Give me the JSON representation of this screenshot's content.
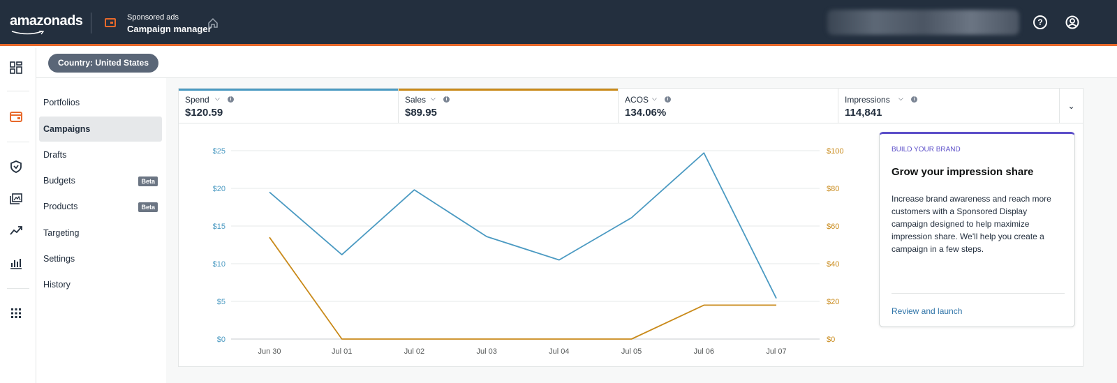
{
  "header": {
    "logo": "amazonads",
    "app_subtitle": "Sponsored ads",
    "app_title": "Campaign manager"
  },
  "country_filter": {
    "label": "Country: United States"
  },
  "subnav": {
    "items": [
      {
        "label": "Portfolios",
        "active": false,
        "badge": ""
      },
      {
        "label": "Campaigns",
        "active": true,
        "badge": ""
      },
      {
        "label": "Drafts",
        "active": false,
        "badge": ""
      },
      {
        "label": "Budgets",
        "active": false,
        "badge": "Beta"
      },
      {
        "label": "Products",
        "active": false,
        "badge": "Beta"
      },
      {
        "label": "Targeting",
        "active": false,
        "badge": ""
      },
      {
        "label": "Settings",
        "active": false,
        "badge": ""
      },
      {
        "label": "History",
        "active": false,
        "badge": ""
      }
    ]
  },
  "metrics": [
    {
      "label": "Spend",
      "value": "$120.59",
      "color": "#4b9ac2",
      "selected": true
    },
    {
      "label": "Sales",
      "value": "$89.95",
      "color": "#c98a1a",
      "selected": true
    },
    {
      "label": "ACOS",
      "value": "134.06%",
      "color": "",
      "selected": false
    },
    {
      "label": "Impressions",
      "value": "114,841",
      "color": "",
      "selected": false
    }
  ],
  "chart_data": {
    "type": "line",
    "x": [
      "Jun 30",
      "Jul 01",
      "Jul 02",
      "Jul 03",
      "Jul 04",
      "Jul 05",
      "Jul 06",
      "Jul 07"
    ],
    "left_axis": {
      "ticks": [
        "$0",
        "$5",
        "$10",
        "$15",
        "$20",
        "$25"
      ],
      "ylim": [
        0,
        25
      ]
    },
    "right_axis": {
      "ticks": [
        "$0",
        "$20",
        "$40",
        "$60",
        "$80",
        "$100"
      ],
      "ylim": [
        0,
        100
      ]
    },
    "grid": true,
    "series": [
      {
        "name": "Spend",
        "axis": "left",
        "color": "#4b9ac2",
        "values": [
          19.5,
          11.2,
          19.8,
          13.6,
          10.5,
          16.1,
          24.7,
          5.4
        ]
      },
      {
        "name": "Sales",
        "axis": "right",
        "color": "#c98a1a",
        "values": [
          54.0,
          0,
          0,
          0,
          0,
          0,
          18.0,
          18.0
        ]
      }
    ]
  },
  "promo_card": {
    "kicker": "BUILD YOUR BRAND",
    "title": "Grow your impression share",
    "body": "Increase brand awareness and reach more customers with a Sponsored Display campaign designed to help maximize impression share. We'll help you create a campaign in a few steps.",
    "link": "Review and launch"
  }
}
